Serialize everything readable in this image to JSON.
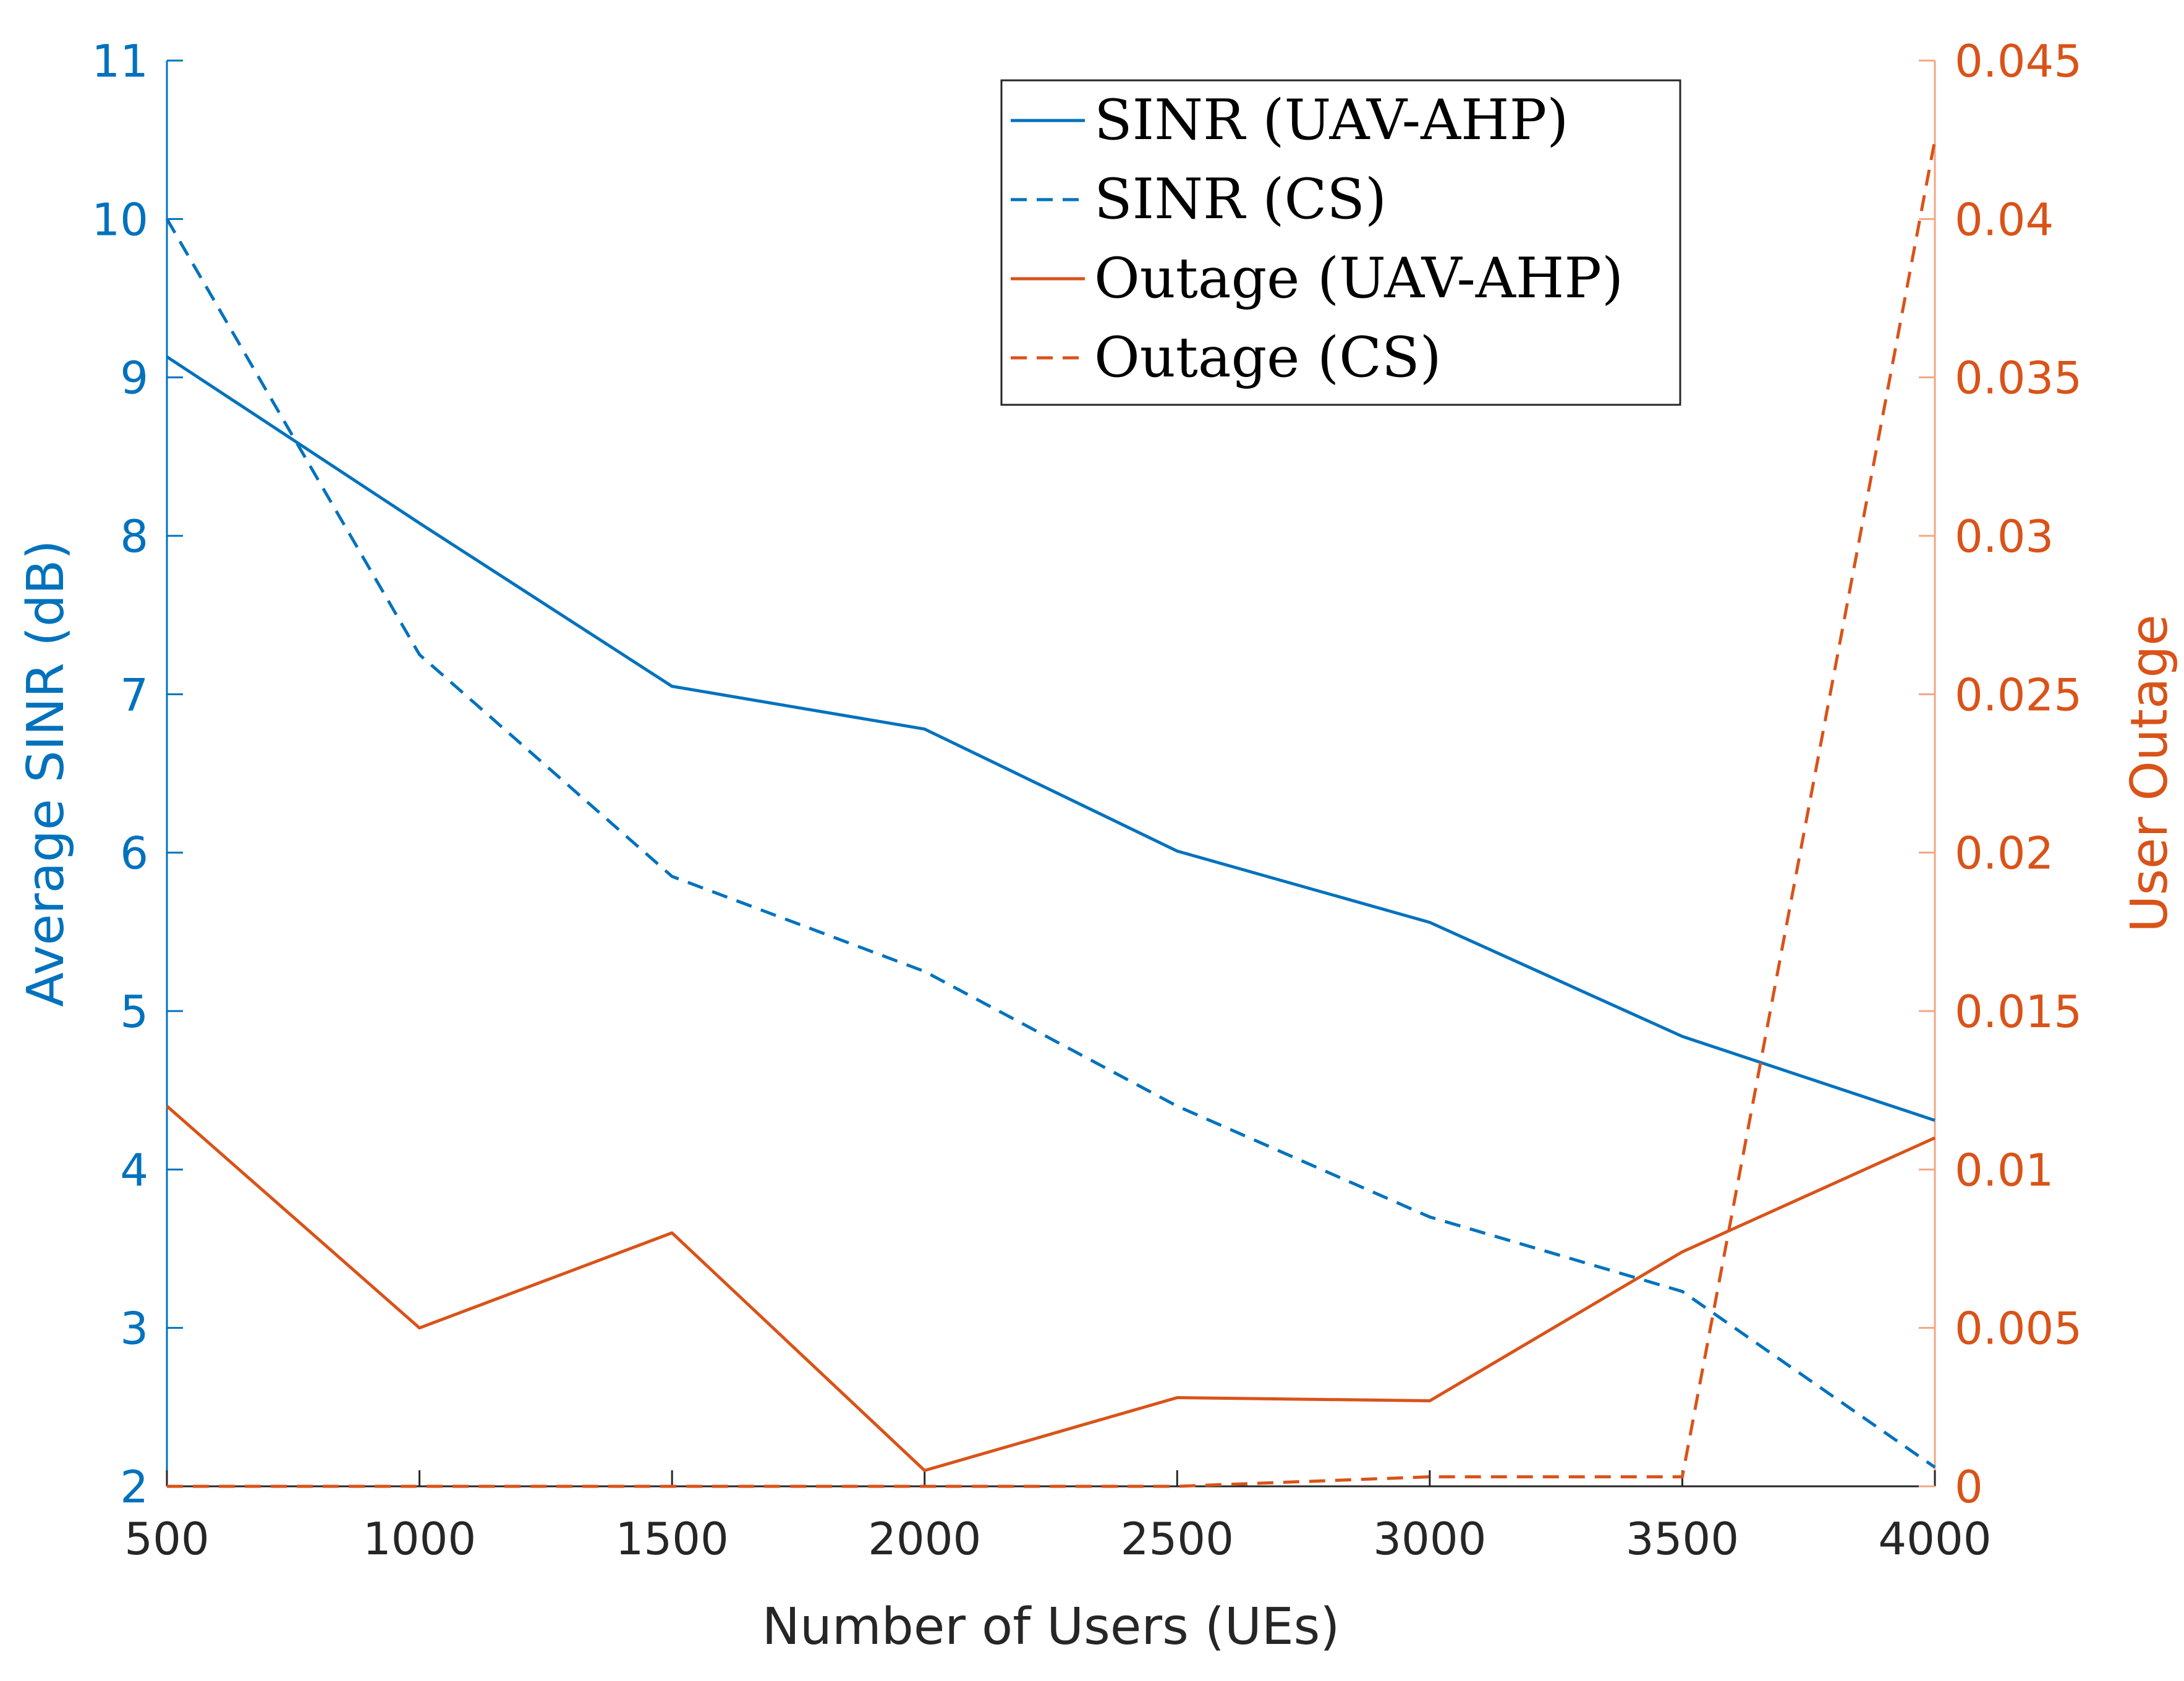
{
  "chart_data": {
    "type": "line",
    "title": "",
    "xlabel": "Number of Users (UEs)",
    "ylabel_left": "Average SINR (dB)",
    "ylabel_right": "User Outage",
    "x": [
      500,
      1000,
      1500,
      2000,
      2500,
      3000,
      3500,
      4000
    ],
    "xlim": [
      500,
      4000
    ],
    "xticks": [
      "500",
      "1000",
      "1500",
      "2000",
      "2500",
      "3000",
      "3500",
      "4000"
    ],
    "ylim_left": [
      2,
      11
    ],
    "yticks_left": [
      "2",
      "3",
      "4",
      "5",
      "6",
      "7",
      "8",
      "9",
      "10",
      "11"
    ],
    "ylim_right": [
      0,
      0.045
    ],
    "yticks_right": [
      "0",
      "0.005",
      "0.01",
      "0.015",
      "0.02",
      "0.025",
      "0.03",
      "0.035",
      "0.04",
      "0.045"
    ],
    "grid": false,
    "legend_position": "top-right",
    "colors": {
      "left_axis": "#0072BD",
      "right_axis": "#D95319",
      "axis_line_right": "#F4A582"
    },
    "series": [
      {
        "name": "SINR (UAV-AHP)",
        "axis": "left",
        "style": "solid",
        "color": "#0072BD",
        "values": [
          9.13,
          8.08,
          7.05,
          6.78,
          6.01,
          5.56,
          4.84,
          4.31
        ]
      },
      {
        "name": "SINR (CS)",
        "axis": "left",
        "style": "dashed",
        "color": "#0072BD",
        "values": [
          10.0,
          7.25,
          5.85,
          5.25,
          4.4,
          3.7,
          3.23,
          2.12
        ]
      },
      {
        "name": "Outage (UAV-AHP)",
        "axis": "right",
        "style": "solid",
        "color": "#D95319",
        "values": [
          0.012,
          0.005,
          0.008,
          0.0005,
          0.0028,
          0.0027,
          0.0074,
          0.011
        ]
      },
      {
        "name": "Outage (CS)",
        "axis": "right",
        "style": "dashed",
        "color": "#D95319",
        "values": [
          0,
          0,
          0,
          0,
          0,
          0.0003,
          0.0003,
          0.0425
        ]
      }
    ]
  }
}
